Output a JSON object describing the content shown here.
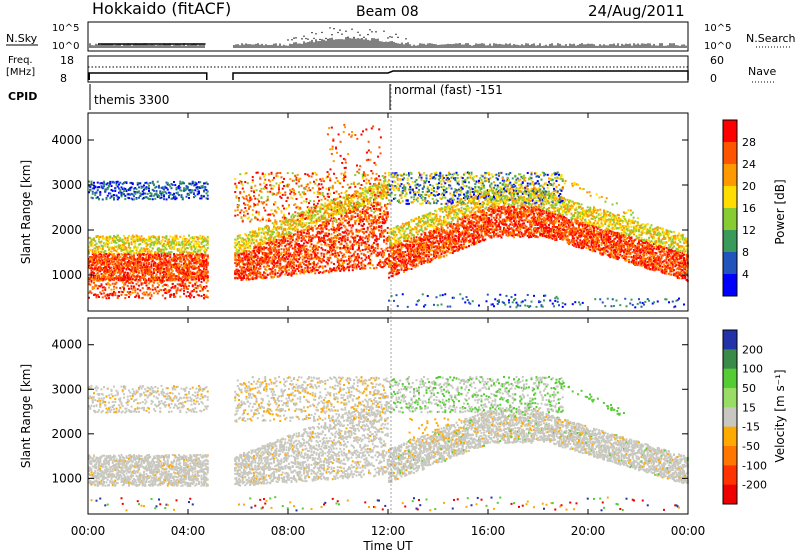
{
  "header": {
    "title": "Hokkaido (fitACF)",
    "beam": "Beam 08",
    "date": "24/Aug/2011"
  },
  "strip": {
    "nsky_label": "N.Sky",
    "nsky_ticks": [
      "10^5",
      "10^0"
    ],
    "nsearch_label": "N.Search",
    "nsearch_ticks": [
      "10^5",
      "10^0"
    ],
    "freq_label_1": "Freq.",
    "freq_label_2": "[MHz]",
    "freq_ticks": [
      "18",
      "8"
    ],
    "nave_label": "Nave",
    "nave_ticks": [
      "60",
      "0"
    ],
    "cpid_label": "CPID",
    "cpid_1": "themis 3300",
    "cpid_2": "normal (fast) -151"
  },
  "chart_data": [
    {
      "type": "heatmap",
      "name": "power",
      "ylabel": "Slant Range [km]",
      "yticks": [
        "4000",
        "3000",
        "2000",
        "1000"
      ],
      "ytick_values": [
        4000,
        3000,
        2000,
        1000
      ],
      "ylim": [
        200,
        4600
      ],
      "colorbar_label": "Power [dB]",
      "colorbar_ticks": [
        "28",
        "24",
        "20",
        "16",
        "12",
        "8",
        "4"
      ],
      "colorbar_colors": [
        "#ff0000",
        "#ff5500",
        "#ff9900",
        "#ffdd00",
        "#88cc33",
        "#3a9a5a",
        "#2255bb",
        "#0000ff"
      ]
    },
    {
      "type": "heatmap",
      "name": "velocity",
      "ylabel": "Slant Range [km]",
      "yticks": [
        "4000",
        "3000",
        "2000",
        "1000"
      ],
      "ytick_values": [
        4000,
        3000,
        2000,
        1000
      ],
      "ylim": [
        200,
        4600
      ],
      "colorbar_label": "Velocity [m s⁻¹]",
      "colorbar_ticks": [
        "200",
        "100",
        "50",
        "15",
        "-15",
        "-50",
        "-100",
        "-200"
      ],
      "colorbar_colors": [
        "#2233aa",
        "#3a8a4a",
        "#55cc33",
        "#99dd66",
        "#c8c8c0",
        "#ffaa00",
        "#ff7700",
        "#ff3300",
        "#ee0000"
      ]
    }
  ],
  "time_axis": {
    "xlabel": "Time UT",
    "ticks": [
      "00:00",
      "04:00",
      "08:00",
      "12:00",
      "16:00",
      "20:00",
      "00:00"
    ],
    "tick_hours": [
      0,
      4,
      8,
      12,
      16,
      20,
      24
    ],
    "xlim": [
      0,
      24
    ]
  }
}
